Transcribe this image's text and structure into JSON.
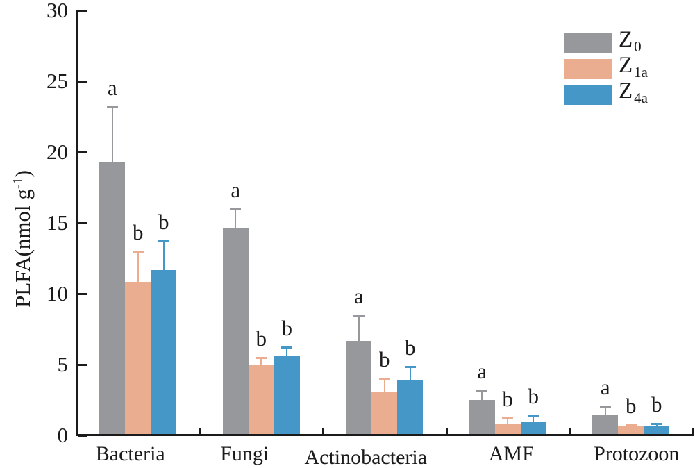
{
  "chart_data": {
    "type": "bar",
    "title": "",
    "xlabel": "",
    "ylabel": "PLFA(nmol g-1)",
    "ylabel_parts": {
      "pre": "PLFA(nmol g",
      "sup": "-1",
      "post": ")"
    },
    "ylim": [
      0,
      30
    ],
    "ytick_step": 5,
    "ytick_labels": [
      "0",
      "5",
      "10",
      "15",
      "20",
      "25",
      "30"
    ],
    "grid": false,
    "legend_position": "top-right",
    "categories": [
      "Bacteria",
      "Fungi",
      "Actinobacteria",
      "AMF",
      "Protozoon"
    ],
    "series": [
      {
        "name": "Z0",
        "legend_base": "Z",
        "legend_sub": "0",
        "color": "#96989B",
        "values": [
          19.3,
          14.6,
          6.65,
          2.5,
          1.45
        ],
        "errors": [
          3.9,
          1.4,
          1.85,
          0.7,
          0.6
        ],
        "letters": [
          "a",
          "a",
          "a",
          "a",
          "a"
        ]
      },
      {
        "name": "Z1a",
        "legend_base": "Z",
        "legend_sub": "1a",
        "color": "#EBAD90",
        "values": [
          10.85,
          4.95,
          3.05,
          0.85,
          0.65
        ],
        "errors": [
          2.15,
          0.55,
          0.95,
          0.4,
          0.1
        ],
        "letters": [
          "b",
          "b",
          "b",
          "b",
          "b"
        ]
      },
      {
        "name": "Z4a",
        "legend_base": "Z",
        "legend_sub": "4a",
        "color": "#4497C7",
        "values": [
          11.65,
          5.6,
          3.9,
          0.95,
          0.7
        ],
        "errors": [
          2.1,
          0.65,
          0.95,
          0.45,
          0.15
        ],
        "letters": [
          "b",
          "b",
          "b",
          "b",
          "b"
        ]
      }
    ],
    "colors": {
      "axis": "#1b1b1b",
      "text": "#1b1b1b",
      "background": "#ffffff"
    }
  }
}
